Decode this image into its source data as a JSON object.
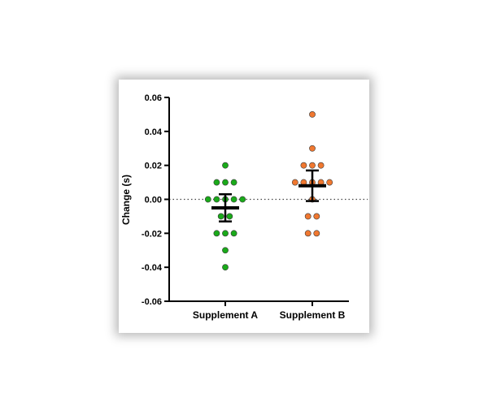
{
  "chart_data": {
    "type": "scatter",
    "title": "",
    "ylabel": "Change (s)",
    "xlabel": "",
    "ylim": [
      -0.06,
      0.06
    ],
    "yticks": [
      0.06,
      0.04,
      0.02,
      0.0,
      -0.02,
      -0.04,
      -0.06
    ],
    "ytick_labels": [
      "0.06",
      "0.04",
      "0.02",
      "0.00",
      "-0.02",
      "-0.04",
      "-0.06"
    ],
    "reference_line": {
      "y": 0.0,
      "style": "dotted"
    },
    "categories": [
      "Supplement A",
      "Supplement B"
    ],
    "series": [
      {
        "name": "Supplement A",
        "color": "#1aaa1a",
        "values": [
          0.02,
          0.01,
          0.01,
          0.01,
          0.0,
          0.0,
          0.0,
          0.0,
          0.0,
          -0.01,
          -0.01,
          -0.02,
          -0.02,
          -0.02,
          -0.03,
          -0.04
        ],
        "mean": -0.005,
        "error": 0.008
      },
      {
        "name": "Supplement B",
        "color": "#f07830",
        "values": [
          0.05,
          0.03,
          0.02,
          0.02,
          0.02,
          0.01,
          0.01,
          0.01,
          0.01,
          0.01,
          0.0,
          -0.01,
          -0.01,
          -0.02,
          -0.02
        ],
        "mean": 0.008,
        "error": 0.009
      }
    ]
  }
}
